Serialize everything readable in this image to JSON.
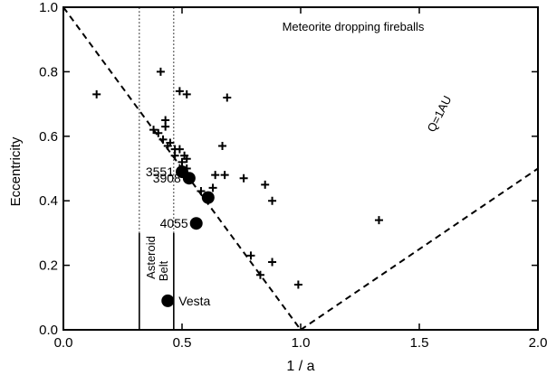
{
  "colors": {
    "ink": "#000000",
    "background": "#ffffff"
  },
  "chart_data": {
    "type": "scatter",
    "title": "Meteorite dropping fireballs",
    "xlabel": "1 / a",
    "ylabel": "Eccentricity",
    "xlim": [
      0.0,
      2.0
    ],
    "ylim": [
      0.0,
      1.0
    ],
    "x_ticks": [
      0.0,
      0.5,
      1.0,
      1.5,
      2.0
    ],
    "x_tick_labels": [
      "0.0",
      "0.5",
      "1.0",
      "1.5",
      "2.0"
    ],
    "y_ticks": [
      0.0,
      0.2,
      0.4,
      0.6,
      0.8,
      1.0
    ],
    "y_tick_labels": [
      "0.0",
      "0.2",
      "0.4",
      "0.6",
      "0.8",
      "1.0"
    ],
    "grid": false,
    "series": [
      {
        "marker": "plus",
        "points": [
          {
            "x": 0.14,
            "y": 0.73
          },
          {
            "x": 0.41,
            "y": 0.8
          },
          {
            "x": 0.38,
            "y": 0.62
          },
          {
            "x": 0.43,
            "y": 0.65
          },
          {
            "x": 0.43,
            "y": 0.63
          },
          {
            "x": 0.4,
            "y": 0.61
          },
          {
            "x": 0.42,
            "y": 0.59
          },
          {
            "x": 0.45,
            "y": 0.58
          },
          {
            "x": 0.44,
            "y": 0.57
          },
          {
            "x": 0.47,
            "y": 0.56
          },
          {
            "x": 0.49,
            "y": 0.56
          },
          {
            "x": 0.51,
            "y": 0.54
          },
          {
            "x": 0.47,
            "y": 0.54
          },
          {
            "x": 0.5,
            "y": 0.52
          },
          {
            "x": 0.52,
            "y": 0.53
          },
          {
            "x": 0.52,
            "y": 0.5
          },
          {
            "x": 0.49,
            "y": 0.74
          },
          {
            "x": 0.52,
            "y": 0.73
          },
          {
            "x": 0.69,
            "y": 0.72
          },
          {
            "x": 0.67,
            "y": 0.57
          },
          {
            "x": 0.64,
            "y": 0.48
          },
          {
            "x": 0.68,
            "y": 0.48
          },
          {
            "x": 0.76,
            "y": 0.47
          },
          {
            "x": 0.85,
            "y": 0.45
          },
          {
            "x": 0.88,
            "y": 0.4
          },
          {
            "x": 0.63,
            "y": 0.44
          },
          {
            "x": 0.58,
            "y": 0.43
          },
          {
            "x": 0.79,
            "y": 0.23
          },
          {
            "x": 0.88,
            "y": 0.21
          },
          {
            "x": 0.83,
            "y": 0.17
          },
          {
            "x": 0.99,
            "y": 0.14
          },
          {
            "x": 1.33,
            "y": 0.34
          }
        ]
      },
      {
        "marker": "filled-circle",
        "points": [
          {
            "x": 0.5,
            "y": 0.49,
            "label": "3551"
          },
          {
            "x": 0.53,
            "y": 0.47,
            "label": "3908"
          },
          {
            "x": 0.61,
            "y": 0.41,
            "label": ""
          },
          {
            "x": 0.56,
            "y": 0.33,
            "label": "4055"
          },
          {
            "x": 0.44,
            "y": 0.09,
            "label": "Vesta"
          }
        ]
      }
    ],
    "reference_lines": [
      {
        "style": "dashed",
        "label": "",
        "points": [
          [
            0.0,
            1.0
          ],
          [
            1.0,
            0.0
          ]
        ]
      },
      {
        "style": "dashed",
        "label": "Q=1AU",
        "points": [
          [
            1.0,
            0.0
          ],
          [
            2.0,
            0.5
          ]
        ]
      }
    ],
    "vertical_lines": [
      {
        "x": 0.32,
        "style": "dotted",
        "y_range": [
          0.3,
          1.0
        ]
      },
      {
        "x": 0.465,
        "style": "dotted",
        "y_range": [
          0.3,
          1.0
        ]
      },
      {
        "x": 0.32,
        "style": "solid",
        "y_range": [
          0.0,
          0.3
        ]
      },
      {
        "x": 0.465,
        "style": "solid",
        "y_range": [
          0.0,
          0.3
        ]
      }
    ],
    "region_label": {
      "line1": "Asteroid",
      "line2": "Belt"
    }
  }
}
